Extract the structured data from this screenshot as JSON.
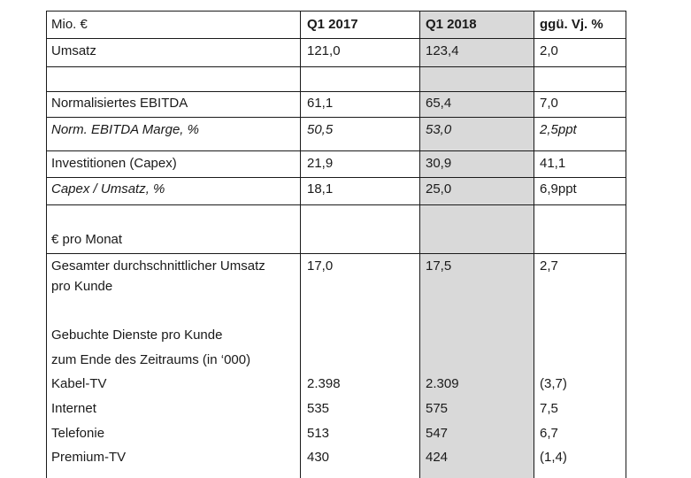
{
  "table": {
    "header": {
      "label": "Mio. €",
      "c1": "Q1 2017",
      "c2": "Q1 2018",
      "c3": "ggü. Vj. %"
    },
    "umsatz": {
      "label": "Umsatz",
      "c1": "121,0",
      "c2": "123,4",
      "c3": "2,0"
    },
    "ebitda": {
      "label": "Normalisiertes EBITDA",
      "c1": "61,1",
      "c2": "65,4",
      "c3": "7,0"
    },
    "ebitda_marge": {
      "label": "Norm. EBITDA Marge, %",
      "c1": "50,5",
      "c2": "53,0",
      "c3": "2,5ppt"
    },
    "capex": {
      "label": "Investitionen (Capex)",
      "c1": "21,9",
      "c2": "30,9",
      "c3": "41,1"
    },
    "capex_umsatz": {
      "label": "Capex / Umsatz, %",
      "c1": "18,1",
      "c2": "25,0",
      "c3": "6,9ppt"
    },
    "pro_monat_heading": "€ pro Monat",
    "arpu": {
      "label_line1": "Gesamter durchschnittlicher Umsatz",
      "label_line2": "pro Kunde",
      "c1": "17,0",
      "c2": "17,5",
      "c3": "2,7"
    },
    "dienste_heading_line1": "Gebuchte Dienste pro Kunde",
    "dienste_heading_line2": "zum Ende des Zeitraums (in ‘000)",
    "kabel": {
      "label": "Kabel-TV",
      "c1": "2.398",
      "c2": "2.309",
      "c3": "(3,7)"
    },
    "internet": {
      "label": "Internet",
      "c1": "535",
      "c2": "575",
      "c3": "7,5"
    },
    "telefonie": {
      "label": "Telefonie",
      "c1": "513",
      "c2": "547",
      "c3": "6,7"
    },
    "premium": {
      "label": "Premium-TV",
      "c1": "430",
      "c2": "424",
      "c3": "(1,4)"
    }
  }
}
